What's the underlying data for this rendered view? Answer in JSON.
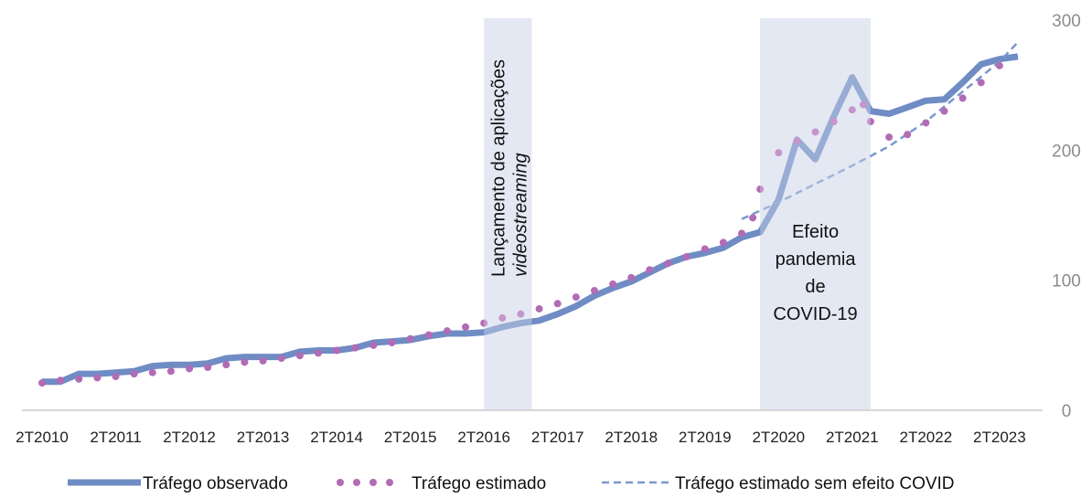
{
  "chart_data": {
    "type": "line",
    "title": "",
    "xlabel": "",
    "ylabel": "",
    "ylim": [
      0,
      300
    ],
    "y_ticks": [
      0,
      100,
      200,
      300
    ],
    "y_axis_side": "right",
    "grid": false,
    "legend_position": "bottom",
    "x_tick_labels": [
      "2T2010",
      "2T2011",
      "2T2012",
      "2T2013",
      "2T2014",
      "2T2015",
      "2T2016",
      "2T2017",
      "2T2018",
      "2T2019",
      "2T2020",
      "2T2021",
      "2T2022",
      "2T2023"
    ],
    "x_start_year": 2010.25,
    "x_end_year": 2023.5,
    "series": [
      {
        "name": "Tráfego observado",
        "style": "solid-thick",
        "color": "#6f8cc4",
        "x": [
          2010.25,
          2010.5,
          2010.75,
          2011.0,
          2011.25,
          2011.5,
          2011.75,
          2012.0,
          2012.25,
          2012.5,
          2012.75,
          2013.0,
          2013.25,
          2013.5,
          2013.75,
          2014.0,
          2014.25,
          2014.5,
          2014.75,
          2015.0,
          2015.25,
          2015.5,
          2015.75,
          2016.0,
          2016.25,
          2016.5,
          2016.75,
          2017.0,
          2017.25,
          2017.5,
          2017.75,
          2018.0,
          2018.25,
          2018.5,
          2018.75,
          2019.0,
          2019.25,
          2019.5,
          2019.75,
          2020.0,
          2020.25,
          2020.5,
          2020.75,
          2021.0,
          2021.25,
          2021.5,
          2021.75,
          2022.0,
          2022.25,
          2022.5,
          2022.75,
          2023.0,
          2023.25,
          2023.5
        ],
        "values": [
          22,
          22,
          28,
          28,
          29,
          30,
          34,
          35,
          35,
          36,
          40,
          41,
          41,
          41,
          45,
          46,
          46,
          48,
          52,
          53,
          54,
          57,
          59,
          59,
          60,
          64,
          67,
          69,
          74,
          80,
          88,
          94,
          99,
          106,
          113,
          118,
          121,
          125,
          133,
          137,
          162,
          208,
          193,
          226,
          256,
          230,
          228,
          233,
          238,
          239,
          252,
          266,
          270,
          272
        ]
      },
      {
        "name": "Tráfego estimado",
        "style": "dotted",
        "color": "#b26bb5",
        "x": [
          2010.25,
          2010.5,
          2010.75,
          2011.0,
          2011.25,
          2011.5,
          2011.75,
          2012.0,
          2012.25,
          2012.5,
          2012.75,
          2013.0,
          2013.25,
          2013.5,
          2013.75,
          2014.0,
          2014.25,
          2014.5,
          2014.75,
          2015.0,
          2015.25,
          2015.5,
          2015.75,
          2016.0,
          2016.25,
          2016.5,
          2016.75,
          2017.0,
          2017.25,
          2017.5,
          2017.75,
          2018.0,
          2018.25,
          2018.5,
          2018.75,
          2019.0,
          2019.25,
          2019.5,
          2019.75,
          2019.9,
          2020.0,
          2020.25,
          2020.5,
          2020.75,
          2021.0,
          2021.25,
          2021.4,
          2021.5,
          2021.75,
          2022.0,
          2022.25,
          2022.5,
          2022.75,
          2023.0,
          2023.25
        ],
        "values": [
          21,
          23,
          24,
          25,
          26,
          28,
          29,
          30,
          32,
          33,
          35,
          37,
          38,
          40,
          42,
          44,
          46,
          48,
          50,
          52,
          55,
          58,
          61,
          64,
          67,
          71,
          74,
          78,
          82,
          87,
          92,
          97,
          102,
          108,
          113,
          118,
          124,
          129,
          136,
          148,
          170,
          198,
          207,
          214,
          222,
          231,
          235,
          222,
          210,
          212,
          221,
          230,
          240,
          252,
          265
        ]
      },
      {
        "name": "Tráfego estimado sem efeito COVID",
        "style": "dashed",
        "color": "#7b98cc",
        "x": [
          2019.75,
          2020.25,
          2020.75,
          2021.25,
          2021.75,
          2022.25,
          2022.75,
          2023.25,
          2023.5
        ],
        "values": [
          147,
          160,
          174,
          188,
          203,
          222,
          245,
          268,
          283
        ]
      }
    ],
    "annotations": [
      {
        "label_lines": [
          "Lançamento de aplicações",
          "videostreaming"
        ],
        "x_range": [
          2016.25,
          2016.9
        ],
        "orientation": "vertical"
      },
      {
        "label_lines": [
          "Efeito",
          "pandemia",
          "de",
          "COVID-19"
        ],
        "x_range": [
          2020.0,
          2021.5
        ],
        "orientation": "horizontal"
      }
    ],
    "colors": {
      "shade": "#e4e9f3",
      "observed": "#6f8cc4",
      "estimated": "#b26bb5",
      "no_covid": "#7b98cc"
    }
  }
}
